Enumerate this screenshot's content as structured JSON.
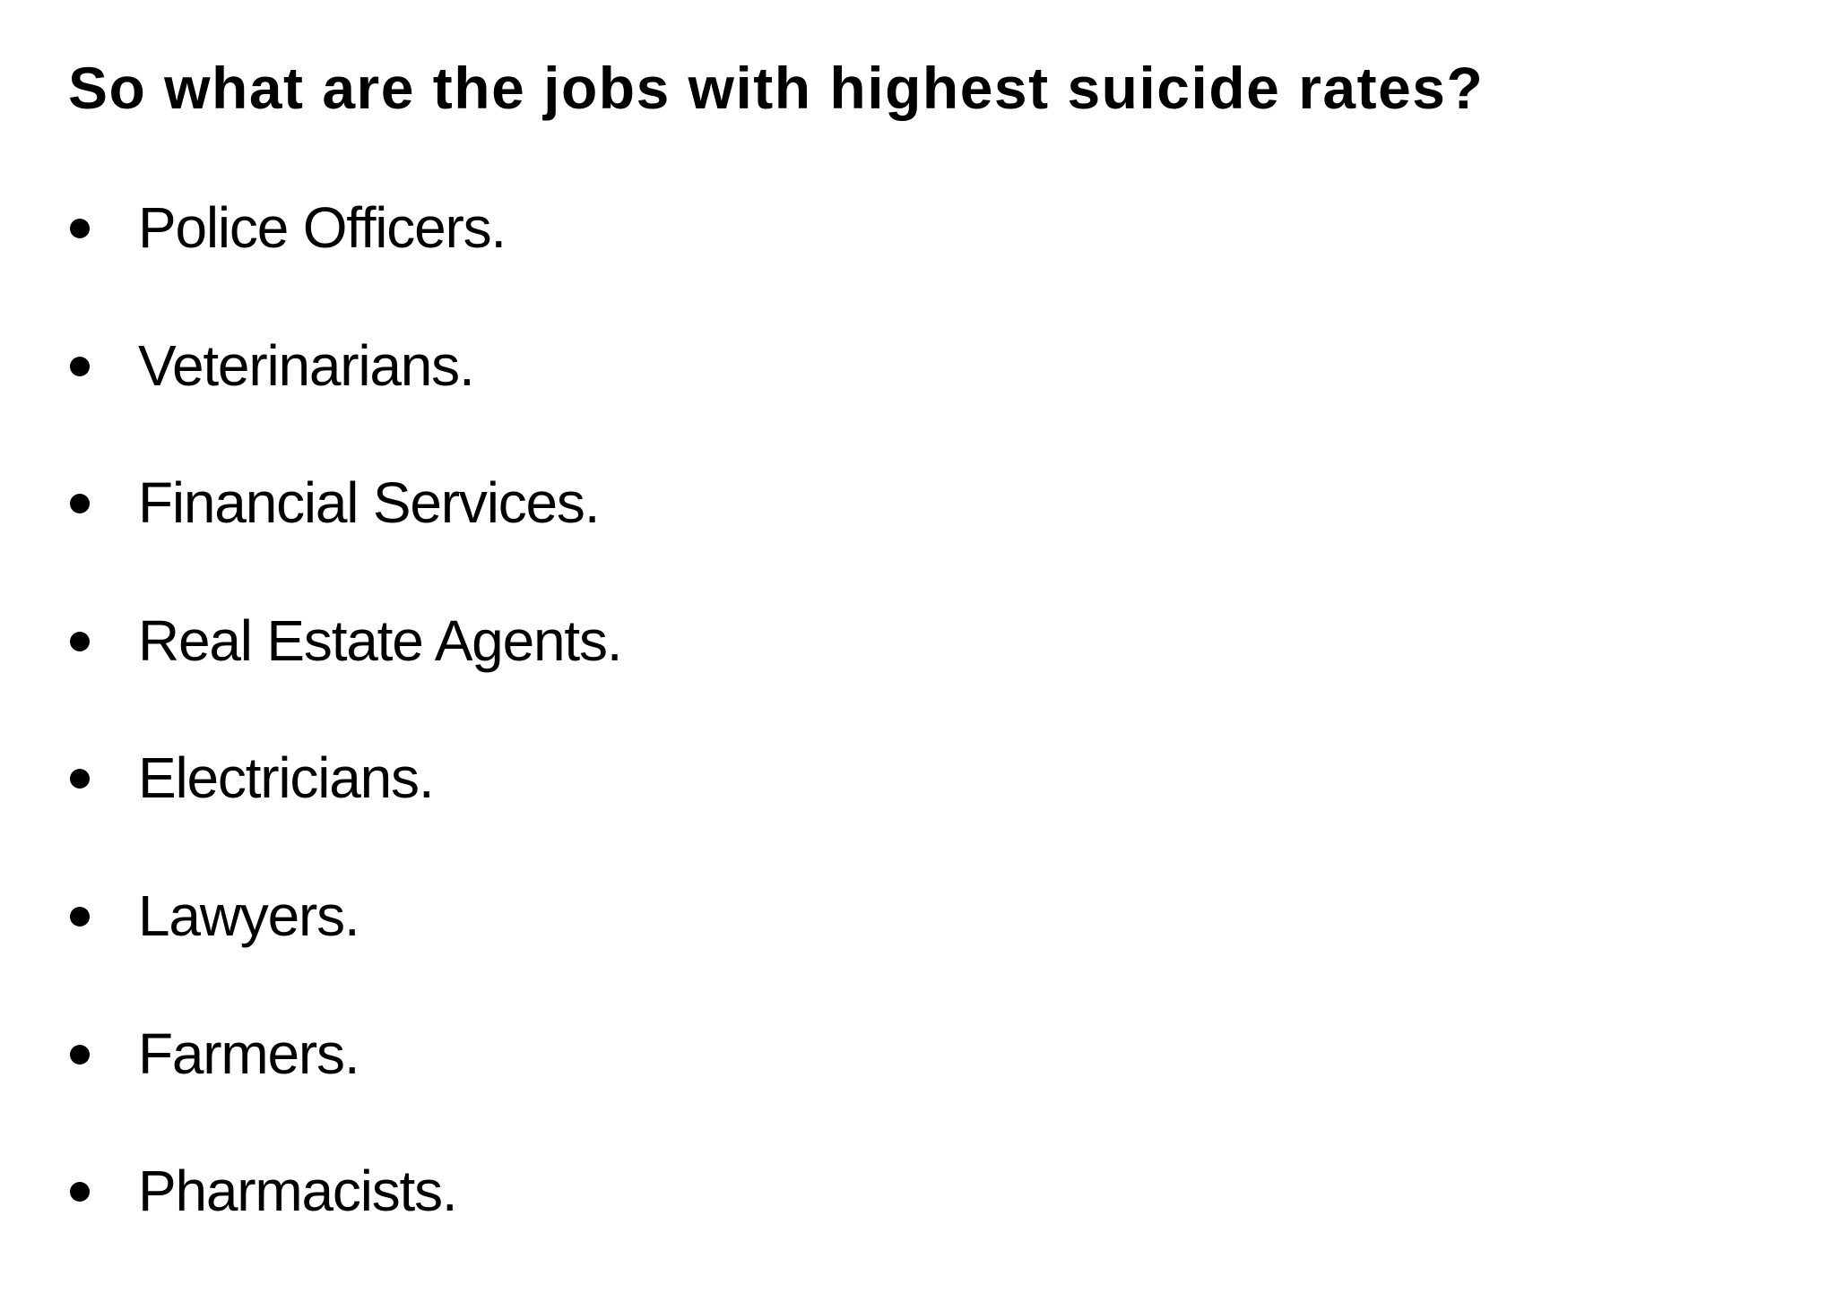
{
  "heading": "So what are the jobs with highest suicide rates?",
  "items": [
    "Police Officers.",
    "Veterinarians.",
    "Financial Services.",
    "Real Estate Agents.",
    "Electricians.",
    "Lawyers.",
    "Farmers.",
    "Pharmacists."
  ]
}
